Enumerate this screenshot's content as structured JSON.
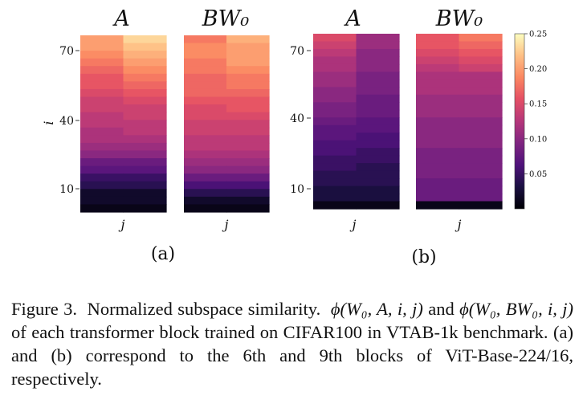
{
  "chart_data": [
    {
      "panel": "(a)",
      "type": "heatmap",
      "subtitles": [
        "A",
        "BW₀"
      ],
      "ylabel": "i",
      "xlabel": "j",
      "yticks": [
        10,
        40,
        70
      ],
      "ylim": [
        0,
        77
      ],
      "matrices": [
        [
          [
            0.2,
            0.23
          ],
          [
            0.2,
            0.22
          ],
          [
            0.19,
            0.21
          ],
          [
            0.18,
            0.2
          ],
          [
            0.17,
            0.19
          ],
          [
            0.16,
            0.18
          ],
          [
            0.16,
            0.17
          ],
          [
            0.15,
            0.16
          ],
          [
            0.14,
            0.15
          ],
          [
            0.14,
            0.14
          ],
          [
            0.13,
            0.14
          ],
          [
            0.13,
            0.13
          ],
          [
            0.12,
            0.13
          ],
          [
            0.12,
            0.12
          ],
          [
            0.11,
            0.11
          ],
          [
            0.1,
            0.1
          ],
          [
            0.08,
            0.08
          ],
          [
            0.07,
            0.07
          ],
          [
            0.05,
            0.05
          ],
          [
            0.04,
            0.04
          ],
          [
            0.02,
            0.02
          ],
          [
            0.02,
            0.02
          ],
          [
            0.01,
            0.01
          ]
        ],
        [
          [
            0.18,
            0.21
          ],
          [
            0.19,
            0.2
          ],
          [
            0.19,
            0.2
          ],
          [
            0.18,
            0.2
          ],
          [
            0.18,
            0.19
          ],
          [
            0.17,
            0.18
          ],
          [
            0.17,
            0.18
          ],
          [
            0.17,
            0.17
          ],
          [
            0.16,
            0.16
          ],
          [
            0.15,
            0.16
          ],
          [
            0.15,
            0.15
          ],
          [
            0.14,
            0.14
          ],
          [
            0.14,
            0.14
          ],
          [
            0.13,
            0.13
          ],
          [
            0.13,
            0.13
          ],
          [
            0.12,
            0.12
          ],
          [
            0.11,
            0.11
          ],
          [
            0.1,
            0.1
          ],
          [
            0.08,
            0.08
          ],
          [
            0.06,
            0.06
          ],
          [
            0.04,
            0.04
          ],
          [
            0.02,
            0.02
          ],
          [
            0.01,
            0.01
          ]
        ]
      ]
    },
    {
      "panel": "(b)",
      "type": "heatmap",
      "subtitles": [
        "A",
        "BW₀"
      ],
      "ylabel": "",
      "xlabel": "j",
      "yticks": [
        10,
        40,
        70
      ],
      "ylim": [
        0,
        77
      ],
      "matrices": [
        [
          [
            0.15,
            0.11
          ],
          [
            0.14,
            0.11
          ],
          [
            0.13,
            0.1
          ],
          [
            0.12,
            0.1
          ],
          [
            0.12,
            0.1
          ],
          [
            0.11,
            0.09
          ],
          [
            0.11,
            0.09
          ],
          [
            0.1,
            0.09
          ],
          [
            0.1,
            0.08
          ],
          [
            0.09,
            0.08
          ],
          [
            0.09,
            0.08
          ],
          [
            0.08,
            0.07
          ],
          [
            0.07,
            0.07
          ],
          [
            0.07,
            0.06
          ],
          [
            0.06,
            0.06
          ],
          [
            0.06,
            0.05
          ],
          [
            0.05,
            0.05
          ],
          [
            0.05,
            0.04
          ],
          [
            0.04,
            0.04
          ],
          [
            0.04,
            0.04
          ],
          [
            0.03,
            0.03
          ],
          [
            0.03,
            0.03
          ],
          [
            0.01,
            0.01
          ]
        ],
        [
          [
            0.16,
            0.18
          ],
          [
            0.16,
            0.17
          ],
          [
            0.15,
            0.16
          ],
          [
            0.14,
            0.15
          ],
          [
            0.13,
            0.14
          ],
          [
            0.12,
            0.12
          ],
          [
            0.12,
            0.12
          ],
          [
            0.12,
            0.12
          ],
          [
            0.11,
            0.11
          ],
          [
            0.11,
            0.11
          ],
          [
            0.11,
            0.11
          ],
          [
            0.1,
            0.1
          ],
          [
            0.1,
            0.1
          ],
          [
            0.1,
            0.1
          ],
          [
            0.1,
            0.1
          ],
          [
            0.09,
            0.09
          ],
          [
            0.09,
            0.09
          ],
          [
            0.09,
            0.09
          ],
          [
            0.09,
            0.09
          ],
          [
            0.08,
            0.08
          ],
          [
            0.08,
            0.08
          ],
          [
            0.08,
            0.08
          ],
          [
            0.01,
            0.01
          ]
        ]
      ]
    }
  ],
  "colorbar": {
    "colormap": "magma",
    "min": 0.0,
    "max": 0.25,
    "ticks": [
      "0.05",
      "0.10",
      "0.15",
      "0.20",
      "0.25"
    ]
  },
  "caption": {
    "label": "Figure 3.",
    "text_1": "Normalized subspace similarity.",
    "formula_1": "ϕ(W₀, A, i, j)",
    "text_2": "and",
    "formula_2": "ϕ(W₀, BW₀, i, j)",
    "text_3": "of each transformer block trained on CIFAR100 in VTAB-1k benchmark. (a) and (b) correspond to the 6th and 9th blocks of ViT-Base-224/16, respectively."
  }
}
